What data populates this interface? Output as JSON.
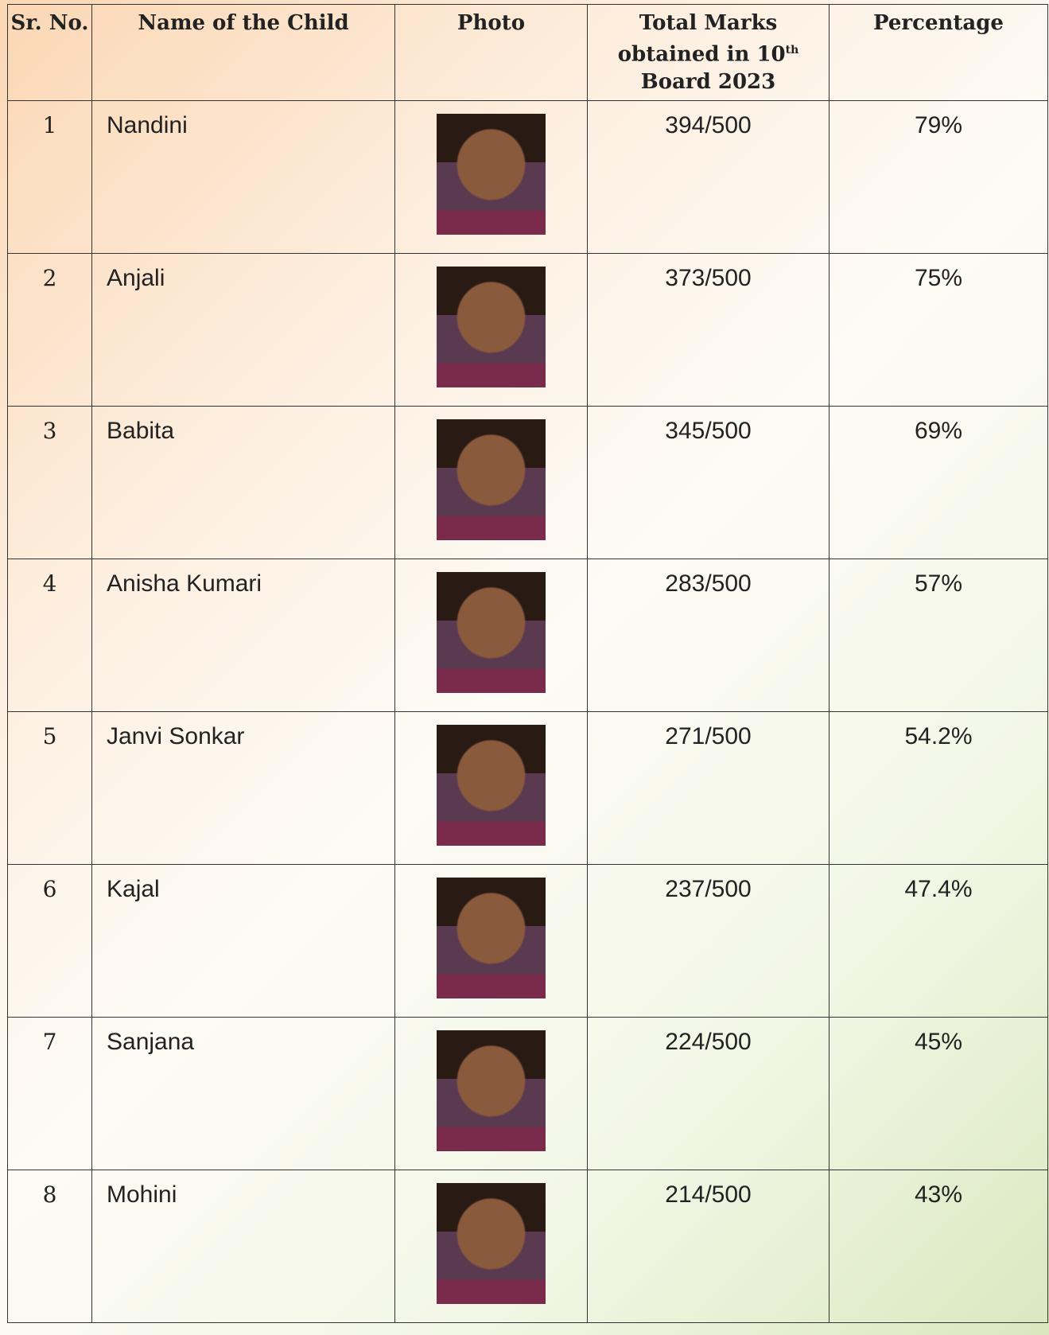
{
  "table": {
    "header": [
      "Sr. No.",
      "Name of the Child",
      "Photo",
      {
        "text": "Total Marks obtained in 10",
        "sup": "th",
        "tail": "Board 2023"
      },
      "Percentage"
    ],
    "rows": [
      [
        1,
        "Nandini",
        "394/500",
        "79%"
      ],
      [
        2,
        "Anjali",
        "373/500",
        "75%"
      ],
      [
        3,
        "Babita",
        "345/500",
        "69%"
      ],
      [
        4,
        "Anisha Kumari",
        "283/500",
        "57%"
      ],
      [
        5,
        "Janvi Sonkar",
        "271/500",
        "54.2%"
      ],
      [
        6,
        "Kajal",
        "237/500",
        "47.4%"
      ],
      [
        7,
        "Sanjana",
        "224/500",
        "45%"
      ],
      [
        8,
        "Mohini",
        "214/500",
        "43%"
      ]
    ]
  }
}
